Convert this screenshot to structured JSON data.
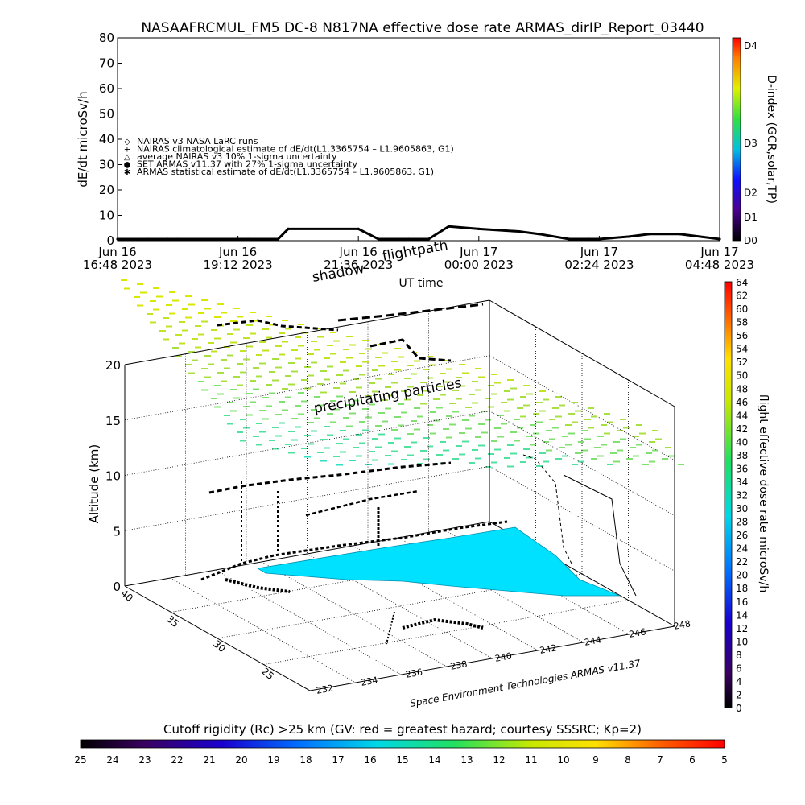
{
  "top_chart": {
    "title": "NASAAFRCMUL_FM5 DC-8    N817NA effective dose rate ARMAS_dirIP_Report_03440",
    "ylabel": "dE/dt microSv/h",
    "xlabel": "UT time",
    "yticks": [
      "0",
      "10",
      "20",
      "30",
      "40",
      "50",
      "60",
      "70",
      "80"
    ],
    "xticks": [
      {
        "day": "Jun 16",
        "time": "16:48 2023"
      },
      {
        "day": "Jun 16",
        "time": "19:12 2023"
      },
      {
        "day": "Jun 16",
        "time": "21:36 2023"
      },
      {
        "day": "Jun 17",
        "time": "00:00 2023"
      },
      {
        "day": "Jun 17",
        "time": "02:24 2023"
      },
      {
        "day": "Jun 17",
        "time": "04:48 2023"
      }
    ],
    "legend": [
      {
        "symbol": "◇",
        "text": "NAIRAS v3 NASA LaRC runs"
      },
      {
        "symbol": "+",
        "text": "NAIRAS climatological estimate of dE/dt(L1.3365754 – L1.9605863, G1)"
      },
      {
        "symbol": "△",
        "text": "average NAIRAS v3 10% 1-sigma uncertainty"
      },
      {
        "symbol": "●",
        "text": "SET ARMAS v11.37 with 27% 1-sigma uncertainty"
      },
      {
        "symbol": "✱",
        "text": "ARMAS statistical estimate of dE/dt(L1.3365754 – L1.9605863, G1)"
      }
    ],
    "dindex": {
      "label": "D-index (GCR,solar,TP)",
      "ticks": [
        "D0",
        "D1",
        "D2",
        "D3",
        "D4"
      ]
    }
  },
  "main_chart": {
    "zlabel": "Altitude (km)",
    "zticks": [
      "0",
      "5",
      "10",
      "15",
      "20"
    ],
    "lat_ticks": [
      "25",
      "30",
      "35",
      "40"
    ],
    "lon_ticks": [
      "232",
      "234",
      "236",
      "238",
      "240",
      "242",
      "244",
      "246",
      "248"
    ],
    "credit": "Space Environment Technologies ARMAS v11.37",
    "annotations": {
      "flightpath": "flightpath",
      "shadow": "shadow",
      "precip": "precipitating particles"
    },
    "colorbar": {
      "label": "flight effective dose rate microSv/h",
      "ticks": [
        "0",
        "2",
        "4",
        "6",
        "8",
        "10",
        "12",
        "14",
        "16",
        "18",
        "20",
        "22",
        "24",
        "26",
        "28",
        "30",
        "32",
        "34",
        "36",
        "38",
        "40",
        "42",
        "44",
        "46",
        "48",
        "50",
        "52",
        "54",
        "56",
        "58",
        "60",
        "62",
        "64"
      ]
    }
  },
  "bottom": {
    "title": "Cutoff rigidity (Rc) >25 km (GV: red = greatest hazard; courtesy SSSRC; Kp=2)",
    "ticks": [
      "25",
      "24",
      "23",
      "22",
      "21",
      "20",
      "19",
      "18",
      "17",
      "16",
      "15",
      "14",
      "13",
      "12",
      "11",
      "10",
      "9",
      "8",
      "7",
      "6",
      "5"
    ]
  },
  "chart_data": {
    "type": "line",
    "x": [
      "16:48",
      "17:24",
      "17:48",
      "18:00",
      "19:12",
      "19:24",
      "20:00",
      "20:12",
      "21:36",
      "22:00",
      "22:36",
      "23:00",
      "23:24",
      "00:00",
      "00:48",
      "01:12",
      "01:48",
      "02:12",
      "02:24",
      "03:00",
      "03:24",
      "04:00",
      "04:48"
    ],
    "series": [
      {
        "values": [
          0,
          0,
          0,
          0,
          0,
          0,
          0,
          4,
          4,
          0,
          0,
          0,
          5,
          4,
          3,
          2,
          0,
          0,
          0,
          1,
          2,
          2,
          0
        ]
      }
    ],
    "ylim": [
      0,
      80
    ]
  }
}
